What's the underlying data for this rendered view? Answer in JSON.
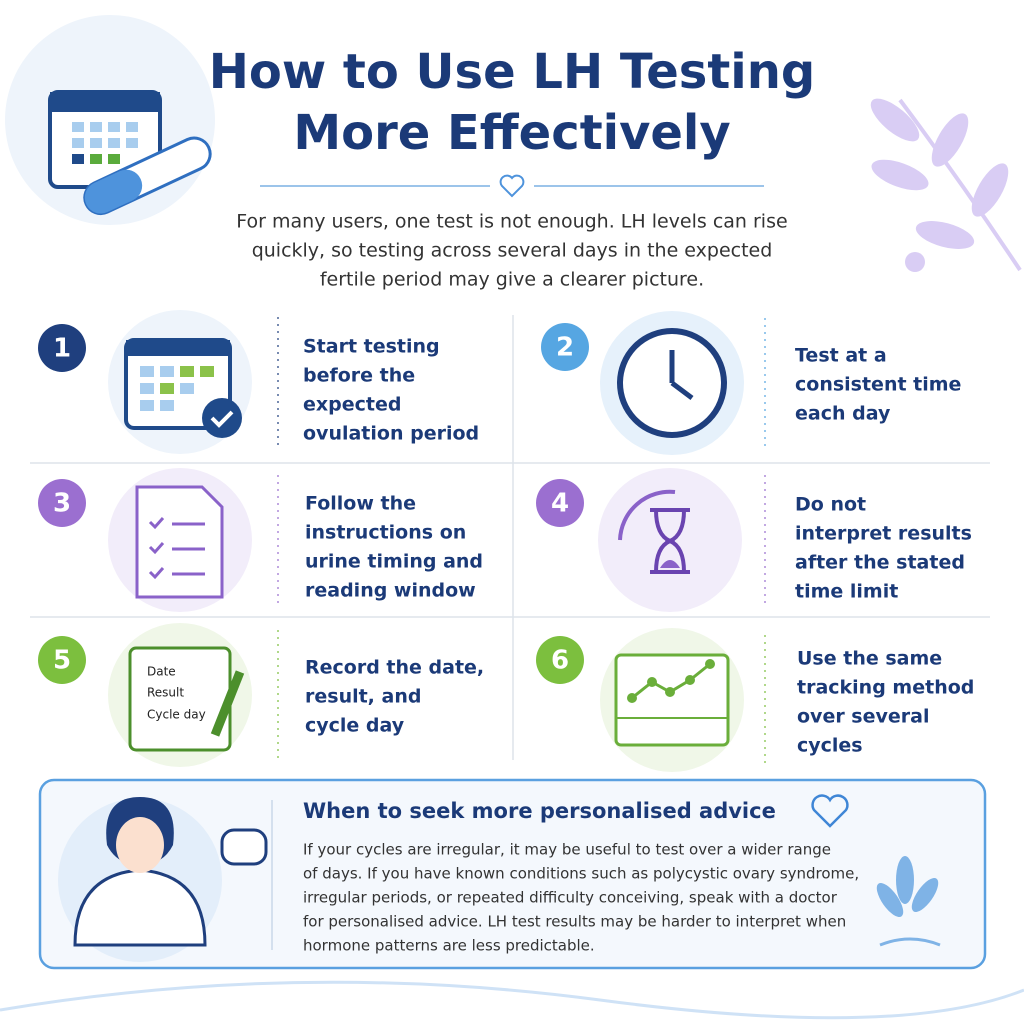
{
  "header": {
    "title_lines": [
      "How to Use LH Testing",
      "More Effectively"
    ],
    "intro_lines": [
      "For many users, one test is not enough. LH levels can rise",
      "quickly, so testing across several days in the expected",
      "fertile period may give a clearer picture."
    ]
  },
  "steps": [
    {
      "number": 1,
      "lines": [
        "Start testing",
        "before the",
        "expected",
        "ovulation period"
      ]
    },
    {
      "number": 2,
      "lines": [
        "Test at a",
        "consistent time",
        "each day"
      ]
    },
    {
      "number": 3,
      "lines": [
        "Follow the",
        "instructions on",
        "urine timing and",
        "reading window"
      ]
    },
    {
      "number": 4,
      "lines": [
        "Do not",
        "interpret results",
        "after the stated",
        "time limit"
      ]
    },
    {
      "number": 5,
      "lines": [
        "Record the date,",
        "result, and",
        "cycle day"
      ],
      "icon_labels": [
        "Date",
        "Result",
        "Cycle day"
      ]
    },
    {
      "number": 6,
      "lines": [
        "Use the same",
        "tracking method",
        "over several",
        "cycles"
      ]
    }
  ],
  "advice": {
    "title": "When to seek more personalised advice",
    "lines": [
      "If your cycles are irregular, it may be useful to test over a wider range",
      "of days. If you have known conditions such as polycystic ovary syndrome,",
      "irregular periods, or repeated difficulty conceiving, speak with a doctor",
      "for personalised advice. LH test results may be harder to interpret when",
      "hormone patterns are less predictable."
    ]
  }
}
